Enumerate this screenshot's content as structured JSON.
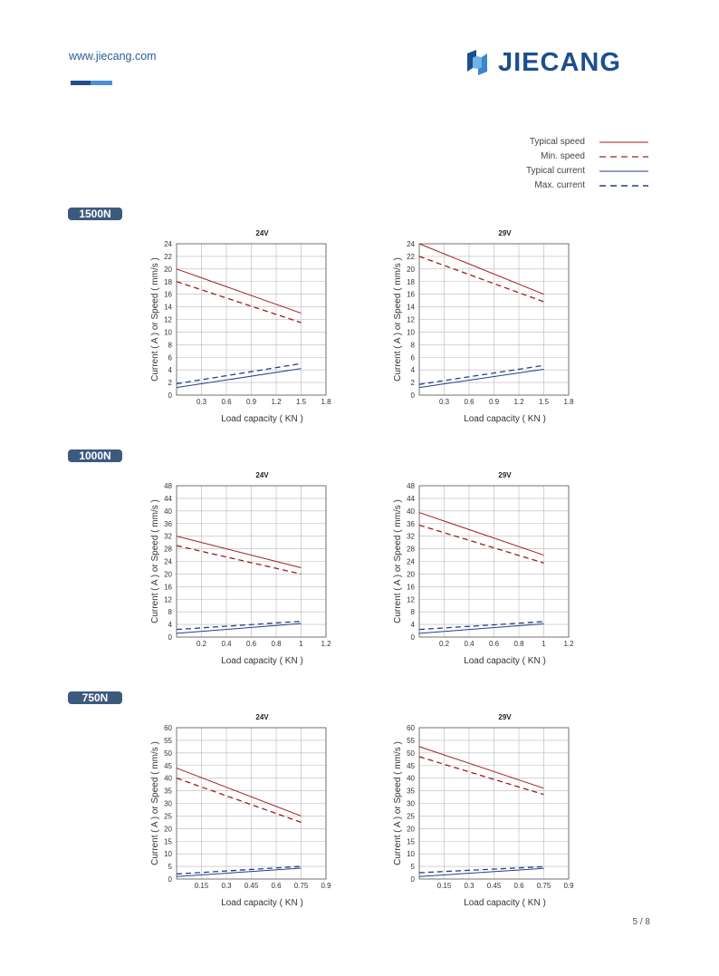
{
  "header": {
    "website": "www.jiecang.com",
    "brand": "JIECANG",
    "brand_color": "#1c4f8e",
    "accent_dark": "#1f4d8f",
    "accent_light": "#4a90d9"
  },
  "legend": [
    {
      "label": "Typical speed",
      "color": "#a01c1c",
      "dash": false
    },
    {
      "label": "Min. speed",
      "color": "#a01c1c",
      "dash": true
    },
    {
      "label": "Typical current",
      "color": "#243f8a",
      "dash": false
    },
    {
      "label": "Max. current",
      "color": "#243f8a",
      "dash": true
    }
  ],
  "sections": [
    {
      "badge": "1500N"
    },
    {
      "badge": "1000N"
    },
    {
      "badge": "750N"
    }
  ],
  "page_number": "5 / 8",
  "chart_data": [
    {
      "type": "line",
      "section": "1500N",
      "title": "24V",
      "xlabel": "Load capacity ( KN )",
      "ylabel": "Current ( A ) or Speed ( mm/s )",
      "xlim": [
        0,
        1.8
      ],
      "xticks": [
        0.3,
        0.6,
        0.9,
        1.2,
        1.5,
        1.8
      ],
      "ylim": [
        0,
        24
      ],
      "yticks": [
        0,
        2,
        4,
        6,
        8,
        10,
        12,
        14,
        16,
        18,
        20,
        22,
        24
      ],
      "grid": true,
      "series": [
        {
          "name": "Typical speed",
          "x": [
            0,
            1.5
          ],
          "y": [
            20,
            13
          ]
        },
        {
          "name": "Min. speed",
          "x": [
            0,
            1.5
          ],
          "y": [
            18,
            11.5
          ]
        },
        {
          "name": "Typical current",
          "x": [
            0,
            1.5
          ],
          "y": [
            1.2,
            4.2
          ]
        },
        {
          "name": "Max. current",
          "x": [
            0,
            1.5
          ],
          "y": [
            1.8,
            5.0
          ]
        }
      ]
    },
    {
      "type": "line",
      "section": "1500N",
      "title": "29V",
      "xlabel": "Load capacity ( KN )",
      "ylabel": "Current ( A ) or Speed ( mm/s )",
      "xlim": [
        0,
        1.8
      ],
      "xticks": [
        0.3,
        0.6,
        0.9,
        1.2,
        1.5,
        1.8
      ],
      "ylim": [
        0,
        24
      ],
      "yticks": [
        0,
        2,
        4,
        6,
        8,
        10,
        12,
        14,
        16,
        18,
        20,
        22,
        24
      ],
      "grid": true,
      "series": [
        {
          "name": "Typical speed",
          "x": [
            0,
            1.5
          ],
          "y": [
            24,
            16
          ]
        },
        {
          "name": "Min. speed",
          "x": [
            0,
            1.5
          ],
          "y": [
            22,
            14.8
          ]
        },
        {
          "name": "Typical current",
          "x": [
            0,
            1.5
          ],
          "y": [
            1.2,
            4.1
          ]
        },
        {
          "name": "Max. current",
          "x": [
            0,
            1.5
          ],
          "y": [
            1.7,
            4.7
          ]
        }
      ]
    },
    {
      "type": "line",
      "section": "1000N",
      "title": "24V",
      "xlabel": "Load capacity ( KN )",
      "ylabel": "Current ( A ) or Speed ( mm/s )",
      "xlim": [
        0,
        1.2
      ],
      "xticks": [
        0.2,
        0.4,
        0.6,
        0.8,
        1,
        1.2
      ],
      "ylim": [
        0,
        48
      ],
      "yticks": [
        0,
        4,
        8,
        12,
        16,
        20,
        24,
        28,
        32,
        36,
        40,
        44,
        48
      ],
      "grid": true,
      "series": [
        {
          "name": "Typical speed",
          "x": [
            0,
            1
          ],
          "y": [
            32,
            22
          ]
        },
        {
          "name": "Min. speed",
          "x": [
            0,
            1
          ],
          "y": [
            29,
            20
          ]
        },
        {
          "name": "Typical current",
          "x": [
            0,
            1
          ],
          "y": [
            1.2,
            4.3
          ]
        },
        {
          "name": "Max. current",
          "x": [
            0,
            1
          ],
          "y": [
            2.4,
            5.0
          ]
        }
      ]
    },
    {
      "type": "line",
      "section": "1000N",
      "title": "29V",
      "xlabel": "Load capacity ( KN )",
      "ylabel": "Current ( A ) or Speed ( mm/s )",
      "xlim": [
        0,
        1.2
      ],
      "xticks": [
        0.2,
        0.4,
        0.6,
        0.8,
        1,
        1.2
      ],
      "ylim": [
        0,
        48
      ],
      "yticks": [
        0,
        4,
        8,
        12,
        16,
        20,
        24,
        28,
        32,
        36,
        40,
        44,
        48
      ],
      "grid": true,
      "series": [
        {
          "name": "Typical speed",
          "x": [
            0,
            1
          ],
          "y": [
            39.5,
            26
          ]
        },
        {
          "name": "Min. speed",
          "x": [
            0,
            1
          ],
          "y": [
            35.5,
            23.5
          ]
        },
        {
          "name": "Typical current",
          "x": [
            0,
            1
          ],
          "y": [
            1.2,
            4.2
          ]
        },
        {
          "name": "Max. current",
          "x": [
            0,
            1
          ],
          "y": [
            2.4,
            4.9
          ]
        }
      ]
    },
    {
      "type": "line",
      "section": "750N",
      "title": "24V",
      "xlabel": "Load capacity ( KN )",
      "ylabel": "Current ( A ) or Speed ( mm/s )",
      "xlim": [
        0,
        0.9
      ],
      "xticks": [
        0.15,
        0.3,
        0.45,
        0.6,
        0.75,
        0.9
      ],
      "ylim": [
        0,
        60
      ],
      "yticks": [
        0,
        5,
        10,
        15,
        20,
        25,
        30,
        35,
        40,
        45,
        50,
        55,
        60
      ],
      "grid": true,
      "series": [
        {
          "name": "Typical speed",
          "x": [
            0,
            0.75
          ],
          "y": [
            44,
            25
          ]
        },
        {
          "name": "Min. speed",
          "x": [
            0,
            0.75
          ],
          "y": [
            40,
            22.5
          ]
        },
        {
          "name": "Typical current",
          "x": [
            0,
            0.75
          ],
          "y": [
            1.0,
            4.3
          ]
        },
        {
          "name": "Max. current",
          "x": [
            0,
            0.75
          ],
          "y": [
            2.0,
            5.0
          ]
        }
      ]
    },
    {
      "type": "line",
      "section": "750N",
      "title": "29V",
      "xlabel": "Load capacity ( KN )",
      "ylabel": "Current ( A ) or Speed ( mm/s )",
      "xlim": [
        0,
        0.9
      ],
      "xticks": [
        0.15,
        0.3,
        0.45,
        0.6,
        0.75,
        0.9
      ],
      "ylim": [
        0,
        60
      ],
      "yticks": [
        0,
        5,
        10,
        15,
        20,
        25,
        30,
        35,
        40,
        45,
        50,
        55,
        60
      ],
      "grid": true,
      "series": [
        {
          "name": "Typical speed",
          "x": [
            0,
            0.75
          ],
          "y": [
            52.5,
            36
          ]
        },
        {
          "name": "Min. speed",
          "x": [
            0,
            0.75
          ],
          "y": [
            48.5,
            33.5
          ]
        },
        {
          "name": "Typical current",
          "x": [
            0,
            0.75
          ],
          "y": [
            1.0,
            4.2
          ]
        },
        {
          "name": "Max. current",
          "x": [
            0,
            0.75
          ],
          "y": [
            2.5,
            4.9
          ]
        }
      ]
    }
  ]
}
